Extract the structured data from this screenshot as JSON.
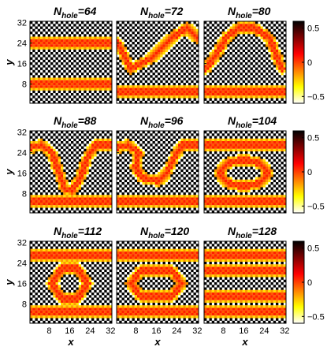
{
  "figure": {
    "panel_prefix": "N",
    "panel_subscript": "hole",
    "xlabel": "x",
    "ylabel": "y",
    "axis_ticks": [
      "8",
      "16",
      "24",
      "32"
    ],
    "colorbar_ticks": [
      "0.5",
      "0",
      "−0.5"
    ]
  },
  "chart_data": {
    "type": "heatmap",
    "grid_size": 32,
    "value_range": [
      -0.6,
      0.6
    ],
    "colormap": [
      "#ffffff",
      "#ffff00",
      "#ff7f00",
      "#ff0000",
      "#800000",
      "#000000"
    ],
    "colorbar_ticks": [
      0.5,
      0,
      -0.5
    ],
    "panels": [
      {
        "label": "=64",
        "stripes": [
          {
            "shape": "h",
            "y": 24
          },
          {
            "shape": "h",
            "y": 8
          }
        ]
      },
      {
        "label": "=72",
        "stripes": [
          {
            "shape": "path",
            "points": [
              [
                1,
                24
              ],
              [
                6,
                14
              ],
              [
                14,
                18
              ],
              [
                22,
                26
              ],
              [
                28,
                30
              ],
              [
                32,
                26
              ]
            ]
          },
          {
            "shape": "h",
            "y": 5
          }
        ]
      },
      {
        "label": "=80",
        "stripes": [
          {
            "shape": "path",
            "points": [
              [
                1,
                14
              ],
              [
                5,
                19
              ],
              [
                9,
                26
              ],
              [
                14,
                30
              ],
              [
                20,
                30
              ],
              [
                26,
                26
              ],
              [
                30,
                16
              ],
              [
                31,
                14
              ]
            ]
          },
          {
            "shape": "h",
            "y": 5
          }
        ]
      },
      {
        "label": "=88",
        "stripes": [
          {
            "shape": "path",
            "points": [
              [
                1,
                26
              ],
              [
                5,
                27
              ],
              [
                9,
                24
              ],
              [
                12,
                16
              ],
              [
                14,
                10
              ],
              [
                17,
                9
              ],
              [
                20,
                14
              ],
              [
                23,
                22
              ],
              [
                26,
                27
              ],
              [
                32,
                27
              ]
            ]
          },
          {
            "shape": "h",
            "y": 5
          }
        ]
      },
      {
        "label": "=96",
        "stripes": [
          {
            "shape": "path",
            "points": [
              [
                1,
                26
              ],
              [
                5,
                27
              ],
              [
                9,
                24
              ],
              [
                8,
                18
              ],
              [
                11,
                14
              ],
              [
                17,
                13
              ],
              [
                20,
                16
              ],
              [
                23,
                22
              ],
              [
                26,
                27
              ],
              [
                32,
                27
              ]
            ]
          },
          {
            "shape": "h",
            "y": 5
          }
        ]
      },
      {
        "label": "=104",
        "stripes": [
          {
            "shape": "h",
            "y": 27
          },
          {
            "shape": "ring",
            "cx": 16,
            "cy": 16,
            "rx": 9,
            "ry": 5
          },
          {
            "shape": "h",
            "y": 5
          }
        ]
      },
      {
        "label": "=112",
        "stripes": [
          {
            "shape": "h",
            "y": 27
          },
          {
            "shape": "poly",
            "points": [
              [
                9,
                16
              ],
              [
                13,
                22
              ],
              [
                19,
                22
              ],
              [
                23,
                16
              ],
              [
                19,
                10
              ],
              [
                13,
                10
              ]
            ]
          },
          {
            "shape": "h",
            "y": 5
          }
        ]
      },
      {
        "label": "=120",
        "stripes": [
          {
            "shape": "h",
            "y": 27
          },
          {
            "shape": "poly",
            "points": [
              [
                6,
                16
              ],
              [
                10,
                21
              ],
              [
                22,
                21
              ],
              [
                26,
                16
              ],
              [
                22,
                11
              ],
              [
                10,
                11
              ]
            ]
          },
          {
            "shape": "h",
            "y": 5
          }
        ]
      },
      {
        "label": "=128",
        "stripes": [
          {
            "shape": "h",
            "y": 27
          },
          {
            "shape": "h",
            "y": 21
          },
          {
            "shape": "h",
            "y": 11
          },
          {
            "shape": "h",
            "y": 5
          }
        ]
      }
    ]
  }
}
